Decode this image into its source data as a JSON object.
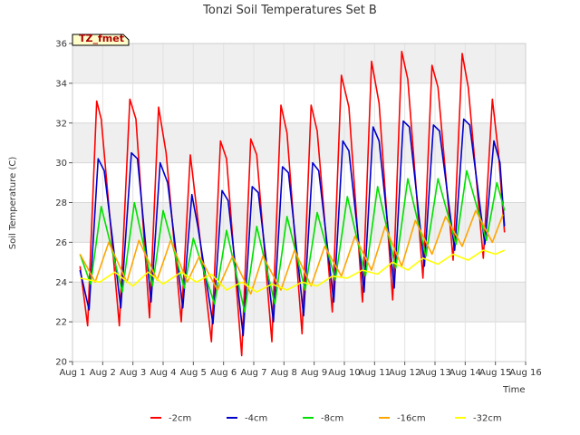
{
  "chart_data": {
    "type": "line",
    "title": "Tonzi Soil Temperatures Set B",
    "xlabel": "Time",
    "ylabel": "Soil Temperature (C)",
    "site_tag": "TZ_fmet",
    "xlim": [
      1,
      16
    ],
    "ylim": [
      20,
      36
    ],
    "x_ticks": [
      {
        "value": 1,
        "label": "Aug 1"
      },
      {
        "value": 2,
        "label": "Aug 2"
      },
      {
        "value": 3,
        "label": "Aug 3"
      },
      {
        "value": 4,
        "label": "Aug 4"
      },
      {
        "value": 5,
        "label": "Aug 5"
      },
      {
        "value": 6,
        "label": "Aug 6"
      },
      {
        "value": 7,
        "label": "Aug 7"
      },
      {
        "value": 8,
        "label": "Aug 8"
      },
      {
        "value": 9,
        "label": "Aug 9"
      },
      {
        "value": 10,
        "label": "Aug 10"
      },
      {
        "value": 11,
        "label": "Aug 11"
      },
      {
        "value": 12,
        "label": "Aug 12"
      },
      {
        "value": 13,
        "label": "Aug 13"
      },
      {
        "value": 14,
        "label": "Aug 14"
      },
      {
        "value": 15,
        "label": "Aug 15"
      },
      {
        "value": 16,
        "label": "Aug 16"
      }
    ],
    "y_ticks": [
      20,
      22,
      24,
      26,
      28,
      30,
      32,
      34,
      36
    ],
    "grid": true,
    "legend": "bottom",
    "series": [
      {
        "name": "-2cm",
        "color": "#ff0000",
        "points": [
          [
            1.25,
            24.8
          ],
          [
            1.5,
            21.8
          ],
          [
            1.8,
            33.1
          ],
          [
            1.95,
            32.2
          ],
          [
            2.55,
            21.8
          ],
          [
            2.9,
            33.2
          ],
          [
            3.1,
            32.2
          ],
          [
            3.55,
            22.2
          ],
          [
            3.85,
            32.8
          ],
          [
            4.1,
            30.5
          ],
          [
            4.6,
            22.0
          ],
          [
            4.9,
            30.4
          ],
          [
            5.1,
            27.8
          ],
          [
            5.6,
            21.0
          ],
          [
            5.9,
            31.1
          ],
          [
            6.1,
            30.2
          ],
          [
            6.6,
            20.3
          ],
          [
            6.9,
            31.2
          ],
          [
            7.1,
            30.4
          ],
          [
            7.6,
            21.0
          ],
          [
            7.9,
            32.9
          ],
          [
            8.1,
            31.5
          ],
          [
            8.6,
            21.4
          ],
          [
            8.9,
            32.9
          ],
          [
            9.1,
            31.6
          ],
          [
            9.6,
            22.5
          ],
          [
            9.9,
            34.4
          ],
          [
            10.15,
            32.8
          ],
          [
            10.6,
            23.0
          ],
          [
            10.9,
            35.1
          ],
          [
            11.15,
            33.0
          ],
          [
            11.6,
            23.1
          ],
          [
            11.9,
            35.6
          ],
          [
            12.1,
            34.2
          ],
          [
            12.6,
            24.2
          ],
          [
            12.9,
            34.9
          ],
          [
            13.1,
            33.8
          ],
          [
            13.6,
            25.1
          ],
          [
            13.9,
            35.5
          ],
          [
            14.1,
            33.8
          ],
          [
            14.6,
            25.2
          ],
          [
            14.9,
            33.2
          ],
          [
            15.1,
            30.5
          ],
          [
            15.3,
            26.5
          ]
        ]
      },
      {
        "name": "-4cm",
        "color": "#0000cc",
        "points": [
          [
            1.25,
            24.6
          ],
          [
            1.55,
            22.6
          ],
          [
            1.85,
            30.2
          ],
          [
            2.05,
            29.6
          ],
          [
            2.6,
            22.7
          ],
          [
            2.95,
            30.5
          ],
          [
            3.15,
            30.2
          ],
          [
            3.6,
            23.0
          ],
          [
            3.9,
            30.0
          ],
          [
            4.15,
            29.0
          ],
          [
            4.65,
            22.7
          ],
          [
            4.95,
            28.4
          ],
          [
            5.15,
            26.8
          ],
          [
            5.65,
            21.9
          ],
          [
            5.95,
            28.6
          ],
          [
            6.15,
            28.1
          ],
          [
            6.65,
            21.3
          ],
          [
            6.95,
            28.8
          ],
          [
            7.15,
            28.5
          ],
          [
            7.65,
            22.0
          ],
          [
            7.95,
            29.8
          ],
          [
            8.15,
            29.5
          ],
          [
            8.65,
            22.3
          ],
          [
            8.95,
            30.0
          ],
          [
            9.15,
            29.6
          ],
          [
            9.65,
            23.0
          ],
          [
            9.95,
            31.1
          ],
          [
            10.15,
            30.6
          ],
          [
            10.65,
            23.5
          ],
          [
            10.95,
            31.8
          ],
          [
            11.15,
            31.1
          ],
          [
            11.65,
            23.7
          ],
          [
            11.95,
            32.1
          ],
          [
            12.15,
            31.8
          ],
          [
            12.65,
            24.8
          ],
          [
            12.95,
            31.9
          ],
          [
            13.15,
            31.6
          ],
          [
            13.65,
            25.6
          ],
          [
            13.95,
            32.2
          ],
          [
            14.15,
            31.9
          ],
          [
            14.65,
            25.9
          ],
          [
            14.95,
            31.1
          ],
          [
            15.15,
            30.0
          ],
          [
            15.3,
            26.8
          ]
        ]
      },
      {
        "name": "-8cm",
        "color": "#00e000",
        "points": [
          [
            1.25,
            25.4
          ],
          [
            1.6,
            23.9
          ],
          [
            1.95,
            27.8
          ],
          [
            2.65,
            23.5
          ],
          [
            3.05,
            28.0
          ],
          [
            3.65,
            23.8
          ],
          [
            4.0,
            27.6
          ],
          [
            4.7,
            23.7
          ],
          [
            5.0,
            26.2
          ],
          [
            5.7,
            22.9
          ],
          [
            6.1,
            26.6
          ],
          [
            6.7,
            22.5
          ],
          [
            7.1,
            26.8
          ],
          [
            7.7,
            22.9
          ],
          [
            8.1,
            27.3
          ],
          [
            8.7,
            23.6
          ],
          [
            9.1,
            27.5
          ],
          [
            9.7,
            24.1
          ],
          [
            10.1,
            28.3
          ],
          [
            10.7,
            24.3
          ],
          [
            11.1,
            28.8
          ],
          [
            11.7,
            24.7
          ],
          [
            12.1,
            29.2
          ],
          [
            12.7,
            25.3
          ],
          [
            13.1,
            29.2
          ],
          [
            13.7,
            25.9
          ],
          [
            14.05,
            29.6
          ],
          [
            14.7,
            26.1
          ],
          [
            15.05,
            29.0
          ],
          [
            15.3,
            27.6
          ]
        ]
      },
      {
        "name": "-16cm",
        "color": "#ffa500",
        "points": [
          [
            1.25,
            25.4
          ],
          [
            1.75,
            24.0
          ],
          [
            2.2,
            26.0
          ],
          [
            2.8,
            24.0
          ],
          [
            3.2,
            26.1
          ],
          [
            3.8,
            24.1
          ],
          [
            4.25,
            26.1
          ],
          [
            4.8,
            24.0
          ],
          [
            5.2,
            25.3
          ],
          [
            5.8,
            23.6
          ],
          [
            6.3,
            25.3
          ],
          [
            6.9,
            23.4
          ],
          [
            7.3,
            25.3
          ],
          [
            7.9,
            23.6
          ],
          [
            8.35,
            25.6
          ],
          [
            8.9,
            23.8
          ],
          [
            9.35,
            25.8
          ],
          [
            9.9,
            24.3
          ],
          [
            10.35,
            26.3
          ],
          [
            10.9,
            24.6
          ],
          [
            11.35,
            26.8
          ],
          [
            11.9,
            24.8
          ],
          [
            12.35,
            27.1
          ],
          [
            12.9,
            25.4
          ],
          [
            13.35,
            27.3
          ],
          [
            13.9,
            25.8
          ],
          [
            14.35,
            27.6
          ],
          [
            14.9,
            26.0
          ],
          [
            15.25,
            27.4
          ]
        ]
      },
      {
        "name": "-32cm",
        "color": "#ffff00",
        "points": [
          [
            1.25,
            24.2
          ],
          [
            1.9,
            24.0
          ],
          [
            2.4,
            24.5
          ],
          [
            3.0,
            23.8
          ],
          [
            3.5,
            24.5
          ],
          [
            4.0,
            23.9
          ],
          [
            4.6,
            24.5
          ],
          [
            5.1,
            24.0
          ],
          [
            5.6,
            24.4
          ],
          [
            6.1,
            23.6
          ],
          [
            6.6,
            24.0
          ],
          [
            7.1,
            23.5
          ],
          [
            7.6,
            23.9
          ],
          [
            8.1,
            23.6
          ],
          [
            8.6,
            24.0
          ],
          [
            9.1,
            23.8
          ],
          [
            9.6,
            24.3
          ],
          [
            10.1,
            24.2
          ],
          [
            10.6,
            24.6
          ],
          [
            11.1,
            24.4
          ],
          [
            11.6,
            25.0
          ],
          [
            12.1,
            24.6
          ],
          [
            12.6,
            25.2
          ],
          [
            13.1,
            24.9
          ],
          [
            13.6,
            25.4
          ],
          [
            14.1,
            25.1
          ],
          [
            14.6,
            25.6
          ],
          [
            15.0,
            25.4
          ],
          [
            15.3,
            25.6
          ]
        ]
      }
    ]
  }
}
